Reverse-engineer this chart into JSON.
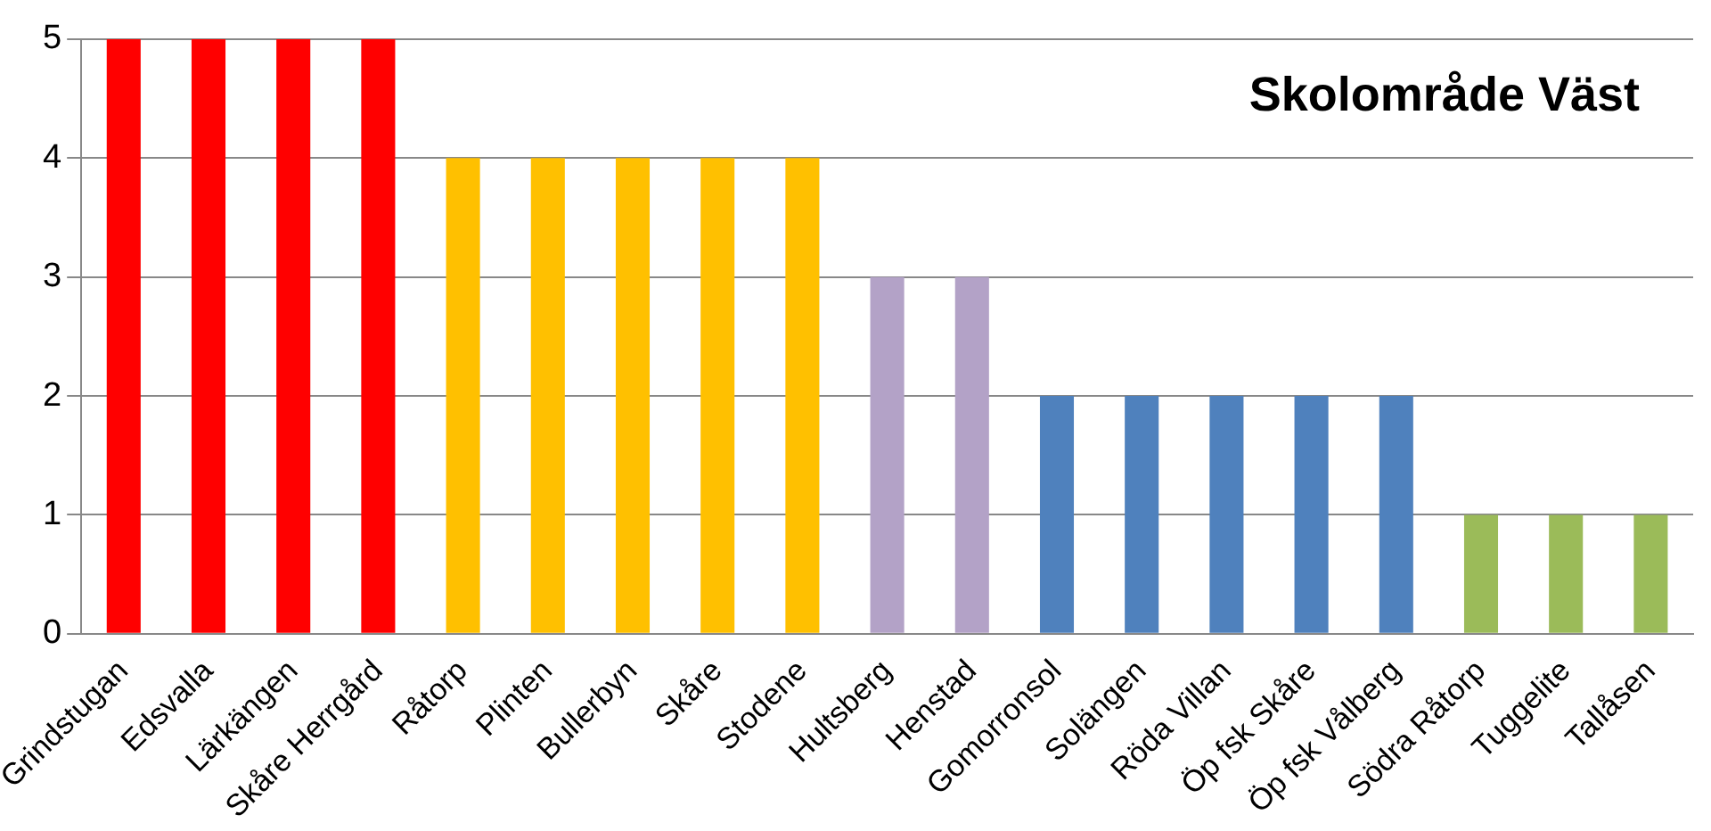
{
  "chart_data": {
    "type": "bar",
    "title": "Skolområde Väst",
    "categories": [
      "Grindstugan",
      "Edsvalla",
      "Lärkängen",
      "Skåre Herrgård",
      "Råtorp",
      "Plinten",
      "Bullerbyn",
      "Skåre",
      "Stodene",
      "Hultsberg",
      "Henstad",
      "Gomorronsol",
      "Solängen",
      "Röda Villan",
      "Öp fsk Skåre",
      "Öp fsk Vålberg",
      "Södra Råtorp",
      "Tuggelite",
      "Tallåsen"
    ],
    "values": [
      5,
      5,
      5,
      5,
      4,
      4,
      4,
      4,
      4,
      3,
      3,
      2,
      2,
      2,
      2,
      2,
      1,
      1,
      1
    ],
    "colors": [
      "#ff0000",
      "#ff0000",
      "#ff0000",
      "#ff0000",
      "#ffc000",
      "#ffc000",
      "#ffc000",
      "#ffc000",
      "#ffc000",
      "#b3a2c7",
      "#b3a2c7",
      "#4f81bd",
      "#4f81bd",
      "#4f81bd",
      "#4f81bd",
      "#4f81bd",
      "#9bbb59",
      "#9bbb59",
      "#9bbb59"
    ],
    "ylim": [
      0,
      5
    ],
    "yticks": [
      0,
      1,
      2,
      3,
      4,
      5
    ],
    "grid": "y"
  }
}
